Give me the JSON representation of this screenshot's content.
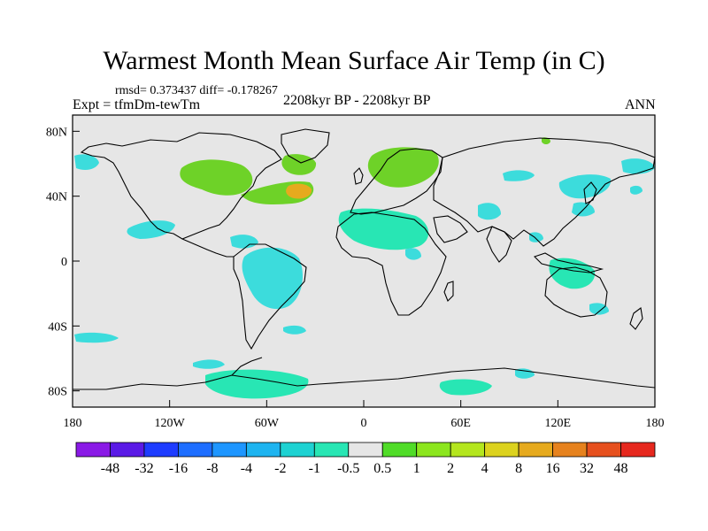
{
  "header": {
    "title": "Warmest Month Mean Surface Air Temp (in C)",
    "stats": "rmsd= 0.373437 diff= -0.178267",
    "experiment": "Expt = tfmDm-tewTm",
    "period": "2208kyr BP - 2208kyr BP",
    "season": "ANN"
  },
  "chart_data": {
    "type": "heatmap",
    "title": "Warmest Month Mean Surface Air Temp (in C)",
    "projection": "cylindrical equidistant",
    "xlim": [
      -180,
      180
    ],
    "ylim": [
      -90,
      90
    ],
    "xticks": [
      {
        "value": -180,
        "label": "180"
      },
      {
        "value": -120,
        "label": "120W"
      },
      {
        "value": -60,
        "label": "60W"
      },
      {
        "value": 0,
        "label": "0"
      },
      {
        "value": 60,
        "label": "60E"
      },
      {
        "value": 120,
        "label": "120E"
      },
      {
        "value": 180,
        "label": "180"
      }
    ],
    "yticks": [
      {
        "value": 80,
        "label": "80N"
      },
      {
        "value": 40,
        "label": "40N"
      },
      {
        "value": 0,
        "label": "0"
      },
      {
        "value": -40,
        "label": "40S"
      },
      {
        "value": -80,
        "label": "80S"
      }
    ],
    "background_color": "#e6e6e6",
    "colorbar": {
      "labels": [
        "-48",
        "-32",
        "-16",
        "-8",
        "-4",
        "-2",
        "-1",
        "-0.5",
        "0.5",
        "1",
        "2",
        "4",
        "8",
        "16",
        "32",
        "48"
      ],
      "colors": [
        "#8a1ae6",
        "#5a1ae6",
        "#1e3cff",
        "#1e6eff",
        "#1e96ff",
        "#1eb4f0",
        "#1ed2d2",
        "#28e6b4",
        "#e6e6e6",
        "#50dc28",
        "#8ce61e",
        "#b4e61e",
        "#dcd21e",
        "#e6aa1e",
        "#e6821e",
        "#e6501e",
        "#e6281e"
      ]
    },
    "regions": [
      {
        "name": "North America / Greenland",
        "category": "1 to 2",
        "color": "#6ed228"
      },
      {
        "name": "North Atlantic",
        "category": "2 to 8",
        "color": "#e6aa1e"
      },
      {
        "name": "Scandinavia / N. Europe",
        "category": "1 to 2",
        "color": "#6ed228"
      },
      {
        "name": "South America",
        "category": "-1 to -0.5",
        "color": "#3cdcdc"
      },
      {
        "name": "Sahara / Arabia",
        "category": "-1 to -0.5",
        "color": "#28e6b4"
      },
      {
        "name": "Australia",
        "category": "-1 to -0.5",
        "color": "#28e6b4"
      },
      {
        "name": "Antarctica",
        "category": "-1 to -0.5",
        "color": "#28e6b4"
      }
    ]
  }
}
